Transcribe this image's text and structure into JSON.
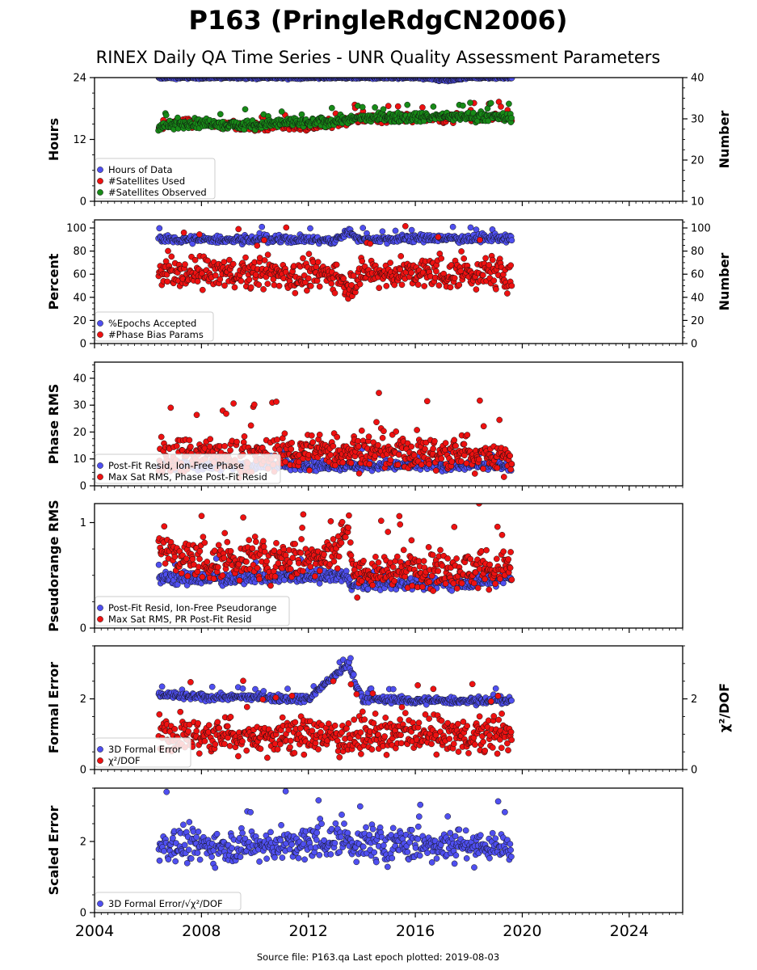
{
  "figure": {
    "title": "P163 (PringleRdgCN2006)",
    "subtitle": "RINEX Daily QA Time Series - UNR Quality Assessment Parameters",
    "source_note": "Source file: P163.qa Last epoch plotted: 2019-08-03",
    "x_ticks": [
      "2004",
      "2008",
      "2012",
      "2016",
      "2020",
      "2024"
    ]
  },
  "colors": {
    "blue": "#4f4ff0",
    "red": "#ee1111",
    "green": "#178a17",
    "edge": "#111111"
  },
  "chart_data": [
    {
      "type": "scatter",
      "ylabel": "Hours",
      "ylabel_right": "Number",
      "ylim": [
        0,
        24
      ],
      "yticks": [
        "0",
        "12",
        "24"
      ],
      "ylim_right": [
        10,
        40
      ],
      "yticks_right": [
        "10",
        "20",
        "30",
        "40"
      ],
      "series": [
        {
          "name": "Hours of Data",
          "color": "blue",
          "axis": "left",
          "x": [
            2006.4,
            2008.0,
            2010.0,
            2012.0,
            2014.0,
            2016.0,
            2017.3,
            2018.0,
            2019.6
          ],
          "y": [
            24,
            24,
            24,
            24,
            24,
            24,
            23.4,
            24,
            24
          ]
        },
        {
          "name": "#Satellites Used",
          "color": "red",
          "axis": "right",
          "x": [
            2006.4,
            2007.0,
            2008.0,
            2009.0,
            2010.0,
            2011.0,
            2012.0,
            2013.0,
            2014.0,
            2015.0,
            2016.0,
            2017.0,
            2018.0,
            2019.0,
            2019.6
          ],
          "y": [
            28,
            29,
            29,
            28.5,
            28,
            28.5,
            28,
            29,
            30,
            30,
            30.5,
            30,
            30.5,
            30.5,
            30
          ]
        },
        {
          "name": "#Satellites Observed",
          "color": "green",
          "axis": "right",
          "x": [
            2006.4,
            2007.0,
            2008.0,
            2009.0,
            2010.0,
            2011.0,
            2012.0,
            2013.0,
            2014.0,
            2015.0,
            2016.0,
            2017.0,
            2018.0,
            2019.0,
            2019.6
          ],
          "y": [
            28,
            28.5,
            29,
            28.5,
            28.5,
            29,
            29,
            29.5,
            30.2,
            30.4,
            30.5,
            30.5,
            30.6,
            30.5,
            30.3
          ]
        }
      ]
    },
    {
      "type": "scatter",
      "ylabel": "Percent",
      "ylabel_right": "Number",
      "ylim": [
        0,
        107
      ],
      "yticks": [
        "0",
        "20",
        "40",
        "60",
        "80",
        "100"
      ],
      "ylim_right": [
        0,
        107
      ],
      "yticks_right": [
        "0",
        "20",
        "40",
        "60",
        "80",
        "100"
      ],
      "series": [
        {
          "name": "%Epochs Accepted",
          "color": "blue",
          "axis": "left",
          "x": [
            2006.4,
            2008.0,
            2010.0,
            2012.0,
            2013.0,
            2013.5,
            2014.0,
            2016.0,
            2018.0,
            2019.6
          ],
          "y": [
            90,
            90,
            90,
            90,
            89,
            96,
            90,
            91,
            91,
            91
          ]
        },
        {
          "name": "#Phase Bias Params",
          "color": "red",
          "axis": "right",
          "x": [
            2006.4,
            2007.0,
            2008.0,
            2009.0,
            2010.0,
            2011.0,
            2011.5,
            2012.0,
            2013.0,
            2013.5,
            2014.0,
            2015.0,
            2016.0,
            2017.0,
            2018.0,
            2019.0,
            2019.6
          ],
          "y": [
            60,
            58,
            60,
            62,
            59,
            62,
            56,
            60,
            61,
            50,
            62,
            60,
            61,
            60,
            61,
            60,
            60
          ]
        }
      ]
    },
    {
      "type": "scatter",
      "ylabel": "Phase RMS",
      "ylim": [
        0,
        46
      ],
      "yticks": [
        "0",
        "10",
        "20",
        "30",
        "40"
      ],
      "series": [
        {
          "name": "Post-Fit Resid, Ion-Free Phase",
          "color": "blue",
          "axis": "left",
          "x": [
            2006.4,
            2008.0,
            2010.0,
            2012.0,
            2014.0,
            2016.0,
            2018.0,
            2019.6
          ],
          "y": [
            7.5,
            7.5,
            7.5,
            7.5,
            7.5,
            7.5,
            7.5,
            7.5
          ]
        },
        {
          "name": "Max Sat RMS, Phase Post-Fit Resid",
          "color": "red",
          "axis": "left",
          "x": [
            2006.4,
            2008.0,
            2010.0,
            2012.0,
            2014.0,
            2016.0,
            2017.0,
            2018.0,
            2019.6
          ],
          "y": [
            12,
            12,
            11,
            13,
            13,
            12,
            12,
            12,
            11
          ]
        }
      ]
    },
    {
      "type": "scatter",
      "ylabel": "Pseudorange RMS",
      "ylim": [
        0,
        1.18
      ],
      "yticks": [
        "0",
        "1"
      ],
      "series": [
        {
          "name": "Post-Fit Resid, Ion-Free Pseudorange",
          "color": "blue",
          "axis": "left",
          "x": [
            2006.4,
            2008.0,
            2010.0,
            2012.0,
            2013.4,
            2013.6,
            2015.0,
            2017.0,
            2019.0,
            2019.6
          ],
          "y": [
            0.47,
            0.47,
            0.48,
            0.48,
            0.5,
            0.42,
            0.42,
            0.43,
            0.45,
            0.5
          ]
        },
        {
          "name": "Max Sat RMS, PR Post-Fit Resid",
          "color": "red",
          "axis": "left",
          "x": [
            2006.4,
            2007.0,
            2008.0,
            2009.0,
            2010.0,
            2011.0,
            2012.0,
            2013.0,
            2013.5,
            2013.7,
            2015.0,
            2017.0,
            2019.0,
            2019.6
          ],
          "y": [
            0.8,
            0.67,
            0.62,
            0.64,
            0.65,
            0.62,
            0.66,
            0.72,
            0.95,
            0.52,
            0.55,
            0.55,
            0.56,
            0.6
          ]
        }
      ]
    },
    {
      "type": "scatter",
      "ylabel": "Formal Error",
      "ylabel_right": "χ²/DOF",
      "ylim": [
        0,
        3.5
      ],
      "yticks": [
        "0",
        "2"
      ],
      "ylim_right": [
        0,
        3.5
      ],
      "yticks_right": [
        "0",
        "2"
      ],
      "series": [
        {
          "name": "3D Formal Error",
          "color": "blue",
          "axis": "left",
          "x": [
            2006.4,
            2008.0,
            2010.0,
            2012.0,
            2013.5,
            2014.0,
            2016.0,
            2018.0,
            2019.6
          ],
          "y": [
            2.1,
            2.05,
            2.05,
            2.0,
            3.0,
            2.0,
            1.95,
            1.95,
            1.95
          ]
        },
        {
          "name": "χ²/DOF",
          "color": "red",
          "axis": "right",
          "x": [
            2006.4,
            2008.0,
            2010.0,
            2012.0,
            2014.0,
            2016.0,
            2018.0,
            2019.6
          ],
          "y": [
            0.95,
            0.95,
            0.95,
            0.95,
            0.95,
            0.95,
            0.95,
            0.95
          ]
        }
      ]
    },
    {
      "type": "scatter",
      "ylabel": "Scaled Error",
      "ylim": [
        0,
        3.5
      ],
      "yticks": [
        "0",
        "2"
      ],
      "series": [
        {
          "name": "3D Formal Error/√χ²/DOF",
          "color": "blue",
          "axis": "left",
          "x": [
            2006.4,
            2008.0,
            2010.0,
            2012.0,
            2013.0,
            2014.0,
            2016.0,
            2018.0,
            2019.6
          ],
          "y": [
            1.9,
            1.9,
            1.9,
            1.9,
            2.1,
            1.9,
            1.9,
            1.9,
            1.85
          ]
        }
      ]
    }
  ],
  "x_range": [
    2004,
    2026
  ]
}
